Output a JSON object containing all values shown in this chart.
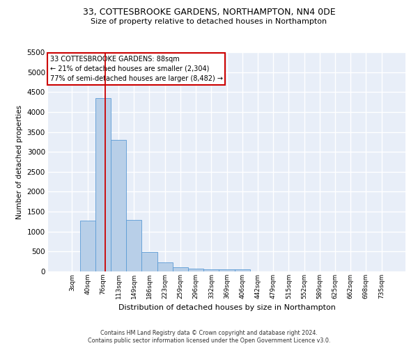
{
  "title_line1": "33, COTTESBROOKE GARDENS, NORTHAMPTON, NN4 0DE",
  "title_line2": "Size of property relative to detached houses in Northampton",
  "xlabel": "Distribution of detached houses by size in Northampton",
  "ylabel": "Number of detached properties",
  "bar_labels": [
    "3sqm",
    "40sqm",
    "76sqm",
    "113sqm",
    "149sqm",
    "186sqm",
    "223sqm",
    "259sqm",
    "296sqm",
    "332sqm",
    "369sqm",
    "406sqm",
    "442sqm",
    "479sqm",
    "515sqm",
    "552sqm",
    "589sqm",
    "625sqm",
    "662sqm",
    "698sqm",
    "735sqm"
  ],
  "bar_heights": [
    0,
    1270,
    4340,
    3300,
    1290,
    490,
    220,
    100,
    75,
    55,
    50,
    50,
    0,
    0,
    0,
    0,
    0,
    0,
    0,
    0,
    0
  ],
  "bar_color": "#b8cfe8",
  "bar_edge_color": "#5b9bd5",
  "background_color": "#e8eef8",
  "grid_color": "#ffffff",
  "ylim_max": 5500,
  "yticks": [
    0,
    500,
    1000,
    1500,
    2000,
    2500,
    3000,
    3500,
    4000,
    4500,
    5000,
    5500
  ],
  "vline_color": "#cc0000",
  "vline_x": 2.15,
  "annotation_line1": "33 COTTESBROOKE GARDENS: 88sqm",
  "annotation_line2": "← 21% of detached houses are smaller (2,304)",
  "annotation_line3": "77% of semi-detached houses are larger (8,482) →",
  "annotation_box_color": "#ffffff",
  "annotation_border_color": "#cc0000",
  "footer_line1": "Contains HM Land Registry data © Crown copyright and database right 2024.",
  "footer_line2": "Contains public sector information licensed under the Open Government Licence v3.0."
}
